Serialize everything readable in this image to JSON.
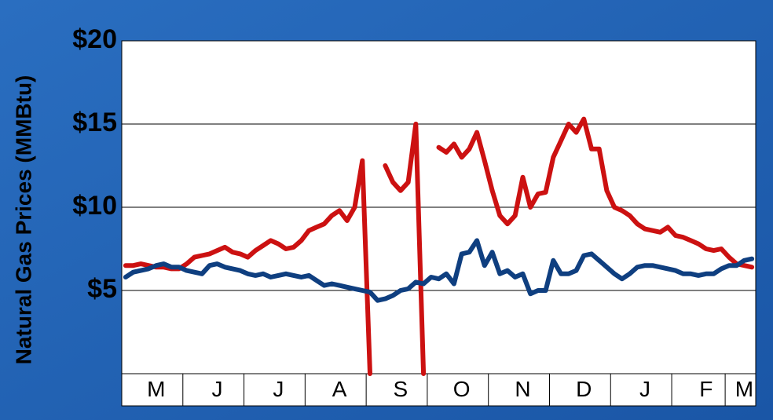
{
  "chart_data": {
    "type": "line",
    "y_label": "Natural Gas Prices (MMBtu)",
    "categories": [
      null,
      null,
      null,
      null,
      "M",
      null,
      null,
      null,
      null,
      null,
      null,
      null,
      "J",
      null,
      null,
      null,
      null,
      null,
      null,
      null,
      "J",
      null,
      null,
      null,
      null,
      null,
      null,
      null,
      "A",
      null,
      null,
      null,
      null,
      null,
      null,
      null,
      "S",
      null,
      null,
      null,
      null,
      null,
      null,
      null,
      "O",
      null,
      null,
      null,
      null,
      null,
      null,
      null,
      "N",
      null,
      null,
      null,
      null,
      null,
      null,
      null,
      "D",
      null,
      null,
      null,
      null,
      null,
      null,
      null,
      "J",
      null,
      null,
      null,
      null,
      null,
      null,
      null,
      "F",
      null,
      null,
      null,
      null,
      "M",
      null
    ],
    "series": [
      {
        "color": "#cc1111",
        "values": [
          6.5,
          6.5,
          6.6,
          6.5,
          6.4,
          6.4,
          6.3,
          6.3,
          6.6,
          7.0,
          7.1,
          7.2,
          7.4,
          7.6,
          7.3,
          7.2,
          7.0,
          7.4,
          7.7,
          8.0,
          7.8,
          7.5,
          7.6,
          8.0,
          8.6,
          8.8,
          9.0,
          9.5,
          9.8,
          9.2,
          10.0,
          12.8,
          0,
          null,
          12.5,
          11.5,
          11.0,
          11.5,
          15.0,
          0,
          null,
          13.6,
          13.3,
          13.8,
          13.0,
          13.5,
          14.5,
          12.8,
          11.0,
          9.5,
          9.0,
          9.5,
          11.8,
          10.0,
          10.8,
          10.9,
          13.0,
          14.0,
          15.0,
          14.5,
          15.3,
          13.5,
          13.5,
          11.0,
          10.0,
          9.8,
          9.5,
          9.0,
          8.7,
          8.6,
          8.5,
          8.8,
          8.3,
          8.2,
          8.0,
          7.8,
          7.5,
          7.4,
          7.5,
          7.0,
          6.6,
          6.5,
          6.4
        ]
      },
      {
        "color": "#0f3f80",
        "values": [
          5.8,
          6.1,
          6.2,
          6.3,
          6.5,
          6.6,
          6.4,
          6.4,
          6.2,
          6.1,
          6.0,
          6.5,
          6.6,
          6.4,
          6.3,
          6.2,
          6.0,
          5.9,
          6.0,
          5.8,
          5.9,
          6.0,
          5.9,
          5.8,
          5.9,
          5.6,
          5.3,
          5.4,
          5.3,
          5.2,
          5.1,
          5.0,
          4.9,
          4.4,
          4.5,
          4.7,
          5.0,
          5.1,
          5.5,
          5.4,
          5.8,
          5.7,
          6.0,
          5.4,
          7.2,
          7.3,
          8.0,
          6.5,
          7.3,
          6.0,
          6.2,
          5.8,
          6.0,
          4.8,
          5.0,
          5.0,
          6.8,
          6.0,
          6.0,
          6.2,
          7.1,
          7.2,
          6.8,
          6.4,
          6.0,
          5.7,
          6.0,
          6.4,
          6.5,
          6.5,
          6.4,
          6.3,
          6.2,
          6.0,
          6.0,
          5.9,
          6.0,
          6.0,
          6.3,
          6.5,
          6.5,
          6.8,
          6.9
        ]
      }
    ],
    "ylim": [
      0,
      20
    ],
    "yticks": [
      {
        "value": 5,
        "label": "$5"
      },
      {
        "value": 10,
        "label": "$10"
      },
      {
        "value": 15,
        "label": "$15"
      },
      {
        "value": 20,
        "label": "$20"
      }
    ],
    "grid": true
  }
}
